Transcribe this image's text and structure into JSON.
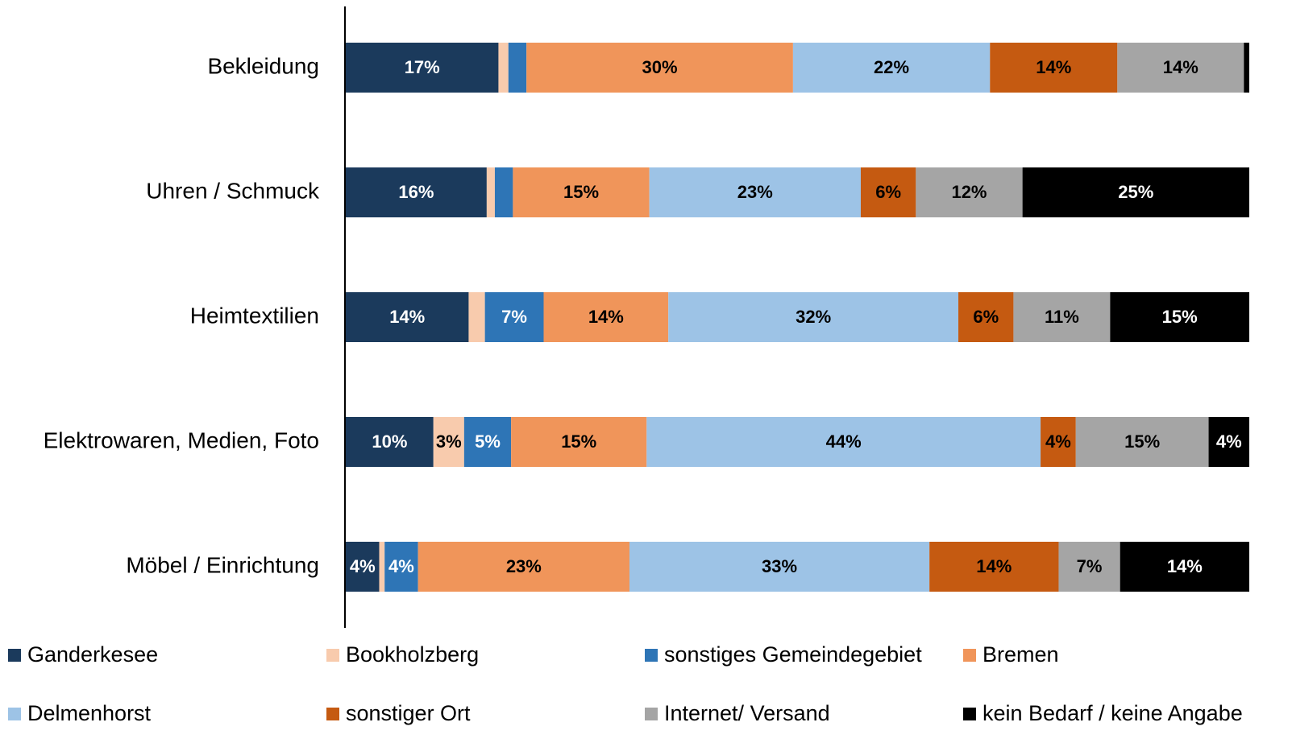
{
  "chart_data": {
    "type": "stacked_barh",
    "categories": [
      "Bekleidung",
      "Uhren / Schmuck",
      "Heimtextilien",
      "Elektrowaren, Medien, Foto",
      "Möbel / Einrichtung"
    ],
    "xlim": [
      0,
      100
    ],
    "series": [
      {
        "name": "Ganderkesee",
        "color": "#1b3a5c",
        "label_color": "#ffffff",
        "values": [
          16.9,
          15.6,
          13.6,
          9.7,
          3.7
        ],
        "value_labels": [
          "17%",
          "16%",
          "14%",
          "10%",
          "4%"
        ]
      },
      {
        "name": "Bookholzberg",
        "color": "#f8cbad",
        "label_color": "#000000",
        "values": [
          1.1,
          0.9,
          1.8,
          3.4,
          0.6
        ],
        "value_labels": [
          null,
          null,
          null,
          "3%",
          null
        ]
      },
      {
        "name": "sonstiges Gemeindegebiet",
        "color": "#2e75b6",
        "label_color": "#ffffff",
        "values": [
          2.0,
          2.0,
          6.5,
          5.2,
          3.7
        ],
        "value_labels": [
          null,
          null,
          "7%",
          "5%",
          "4%"
        ]
      },
      {
        "name": "Bremen",
        "color": "#f0955a",
        "label_color": "#000000",
        "values": [
          29.5,
          15.1,
          13.8,
          15.0,
          23.4
        ],
        "value_labels": [
          "30%",
          "15%",
          "14%",
          "15%",
          "23%"
        ]
      },
      {
        "name": "Delmenhorst",
        "color": "#9dc3e6",
        "label_color": "#000000",
        "values": [
          21.8,
          23.4,
          32.1,
          43.6,
          33.2
        ],
        "value_labels": [
          "22%",
          "23%",
          "32%",
          "44%",
          "33%"
        ]
      },
      {
        "name": "sonstiger Ort",
        "color": "#c55a11",
        "label_color": "#000000",
        "values": [
          14.1,
          6.1,
          6.1,
          3.9,
          14.3
        ],
        "value_labels": [
          "14%",
          "6%",
          "6%",
          "4%",
          "14%"
        ]
      },
      {
        "name": "Internet/ Versand",
        "color": "#a5a5a5",
        "label_color": "#000000",
        "values": [
          14.0,
          11.8,
          10.7,
          14.7,
          6.8
        ],
        "value_labels": [
          "14%",
          "12%",
          "11%",
          "15%",
          "7%"
        ]
      },
      {
        "name": "kein Bedarf / keine Angabe",
        "color": "#000000",
        "label_color": "#ffffff",
        "values": [
          0.6,
          25.1,
          15.4,
          4.5,
          14.3
        ],
        "value_labels": [
          null,
          "25%",
          "15%",
          "4%",
          "14%"
        ]
      }
    ]
  }
}
